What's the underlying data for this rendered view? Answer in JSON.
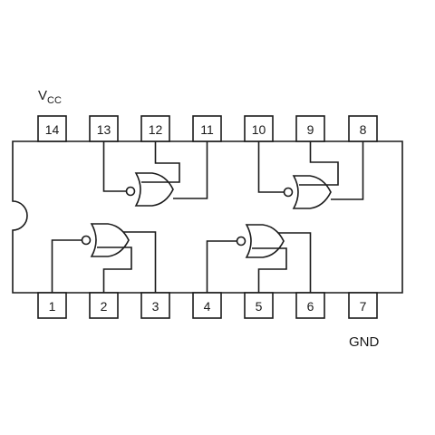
{
  "supply": {
    "main": "V",
    "sub": "CC"
  },
  "ground": "GND",
  "pins_top": [
    "14",
    "13",
    "12",
    "11",
    "10",
    "9",
    "8"
  ],
  "pins_bottom": [
    "1",
    "2",
    "3",
    "4",
    "5",
    "6",
    "7"
  ]
}
